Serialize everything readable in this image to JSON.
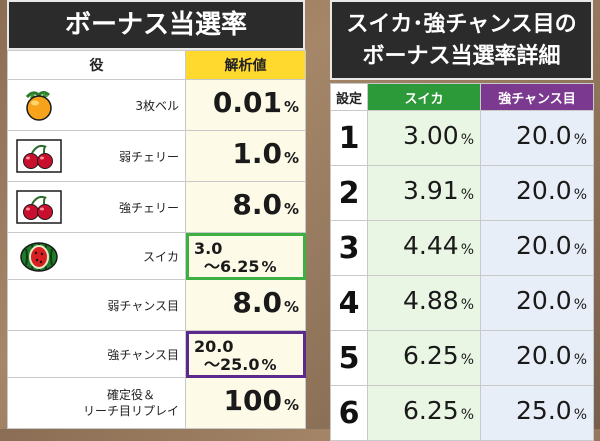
{
  "left": {
    "title": "ボーナス当選率",
    "header": {
      "role": "役",
      "value": "解析値"
    },
    "rows": [
      {
        "icon": "bell-icon",
        "label": "3枚ベル",
        "value": "0.01",
        "unit": "%"
      },
      {
        "icon": "cherry-icon",
        "label": "弱チェリー",
        "value": "1.0",
        "unit": "%"
      },
      {
        "icon": "cherry-icon",
        "label": "強チェリー",
        "value": "8.0",
        "unit": "%"
      },
      {
        "icon": "watermelon-icon",
        "label": "スイカ",
        "value_line1": "3.0",
        "value_line2": "～6.25",
        "unit": "%"
      },
      {
        "label": "弱チャンス目",
        "value": "8.0",
        "unit": "%"
      },
      {
        "label": "強チャンス目",
        "value_line1": "20.0",
        "value_line2": "～25.0",
        "unit": "%"
      },
      {
        "label_line1": "確定役＆",
        "label_line2": "リーチ目リプレイ",
        "value": "100",
        "unit": "%"
      }
    ]
  },
  "right": {
    "title_line1": "スイカ･強チャンス目の",
    "title_line2": "ボーナス当選率詳細",
    "header": {
      "setting": "設定",
      "suika": "スイカ",
      "chance": "強チャンス目"
    },
    "rows": [
      {
        "setting": "1",
        "suika": "3.00",
        "chance": "20.0"
      },
      {
        "setting": "2",
        "suika": "3.91",
        "chance": "20.0"
      },
      {
        "setting": "3",
        "suika": "4.44",
        "chance": "20.0"
      },
      {
        "setting": "4",
        "suika": "4.88",
        "chance": "20.0"
      },
      {
        "setting": "5",
        "suika": "6.25",
        "chance": "20.0"
      },
      {
        "setting": "6",
        "suika": "6.25",
        "chance": "25.0"
      }
    ],
    "unit": "%"
  },
  "colors": {
    "title_bg": "#2b2b2b",
    "value_header": "#ffd92e",
    "suika_header": "#2d9a3a",
    "chance_header": "#7b3a8f",
    "suika_box": "#3cb043",
    "chance_box": "#5b2a8c"
  }
}
